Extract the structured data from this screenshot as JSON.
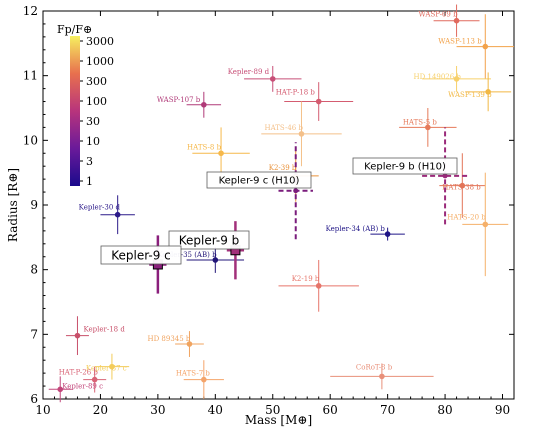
{
  "chart_data": {
    "type": "scatter",
    "title": "",
    "xlabel": "Mass [M⊕]",
    "ylabel": "Radius [R⊕]",
    "xlim": [
      10,
      92
    ],
    "ylim": [
      6,
      12
    ],
    "xticks": [
      "10",
      "20",
      "30",
      "40",
      "50",
      "60",
      "70",
      "80",
      "90"
    ],
    "yticks": [
      "6",
      "7",
      "8",
      "9",
      "10",
      "11",
      "12"
    ],
    "grid": false,
    "colorbar": {
      "label": "Fp/F⊕",
      "scale": "log",
      "ticks": [
        "3000",
        "1000",
        "300",
        "100",
        "30",
        "10",
        "3",
        "1"
      ],
      "placement": "top-left"
    },
    "points": [
      {
        "name": "WASP-69 b",
        "x": 82.0,
        "y": 11.85,
        "xerr": 4.0,
        "yerr": 0.25,
        "color": "#e06a5e"
      },
      {
        "name": "WASP-113 b",
        "x": 87.0,
        "y": 11.45,
        "xerr": 5.0,
        "yerr": 0.5,
        "color": "#f2a24a"
      },
      {
        "name": "Kepler-89 d",
        "x": 50.0,
        "y": 10.95,
        "xerr": 5.0,
        "yerr": 0.2,
        "color": "#c74f77"
      },
      {
        "name": "HD 149026 b",
        "x": 82.0,
        "y": 10.95,
        "xerr": 6.0,
        "yerr": 0.2,
        "color": "#f7d06b"
      },
      {
        "name": "WASP-139 b",
        "x": 87.5,
        "y": 10.75,
        "xerr": 4.0,
        "yerr": 0.3,
        "color": "#f2b844"
      },
      {
        "name": "WASP-107 b",
        "x": 38.0,
        "y": 10.55,
        "xerr": 3.0,
        "yerr": 0.2,
        "color": "#b03a78"
      },
      {
        "name": "HAT-P-18 b",
        "x": 58.0,
        "y": 10.6,
        "xerr": 6.0,
        "yerr": 0.3,
        "color": "#d45c70"
      },
      {
        "name": "HATS-5 b",
        "x": 77.0,
        "y": 10.2,
        "xerr": 5.0,
        "yerr": 0.3,
        "color": "#e67a5a"
      },
      {
        "name": "HATS-46 b",
        "x": 55.0,
        "y": 10.1,
        "xerr": 7.0,
        "yerr": 0.5,
        "color": "#f4c08a"
      },
      {
        "name": "HATS-8 b",
        "x": 41.0,
        "y": 9.8,
        "xerr": 5.0,
        "yerr": 0.4,
        "color": "#f6b84a"
      },
      {
        "name": "K2-39 b",
        "x": 54.0,
        "y": 9.45,
        "xerr": 4.0,
        "yerr": 0.4,
        "color": "#e9923a"
      },
      {
        "name": "HATS-38 b",
        "x": 83.0,
        "y": 9.3,
        "xerr": 4.0,
        "yerr": 0.5,
        "color": "#e27458"
      },
      {
        "name": "HATS-20 b",
        "x": 87.0,
        "y": 8.7,
        "xerr": 4.0,
        "yerr": 0.8,
        "color": "#f5b06a"
      },
      {
        "name": "Kepler-30 d",
        "x": 23.0,
        "y": 8.85,
        "xerr": 3.0,
        "yerr": 0.3,
        "color": "#2c1a8a"
      },
      {
        "name": "Kepler-34 (AB) b",
        "x": 70.0,
        "y": 8.55,
        "xerr": 3.0,
        "yerr": 0.1,
        "color": "#1f1486"
      },
      {
        "name": "Kepler-35 (AB) b",
        "x": 40.0,
        "y": 8.15,
        "xerr": 5.0,
        "yerr": 0.2,
        "color": "#221678"
      },
      {
        "name": "K2-19 b",
        "x": 58.0,
        "y": 7.75,
        "xerr": 7.0,
        "yerr": 0.4,
        "color": "#e6756a"
      },
      {
        "name": "Kepler-18 d",
        "x": 16.0,
        "y": 6.98,
        "xerr": 2.0,
        "yerr": 0.3,
        "color": "#c8506a"
      },
      {
        "name": "HD 89345 b",
        "x": 35.5,
        "y": 6.85,
        "xerr": 2.5,
        "yerr": 0.2,
        "color": "#f0a460"
      },
      {
        "name": "Kepler-87 c",
        "x": 22.0,
        "y": 6.5,
        "xerr": 3.0,
        "yerr": 0.2,
        "color": "#f3cc5a"
      },
      {
        "name": "HATS-7 b",
        "x": 38.0,
        "y": 6.3,
        "xerr": 3.5,
        "yerr": 0.3,
        "color": "#f4a46a"
      },
      {
        "name": "HAT-P-26 b",
        "x": 19.0,
        "y": 6.3,
        "xerr": 2.0,
        "yerr": 0.2,
        "color": "#d86476"
      },
      {
        "name": "Kepler-89 c",
        "x": 13.0,
        "y": 6.15,
        "xerr": 2.0,
        "yerr": 0.2,
        "color": "#c2467a"
      },
      {
        "name": "CoRoT-8 b",
        "x": 69.0,
        "y": 6.35,
        "xerr": 9.0,
        "yerr": 0.2,
        "color": "#e8907a"
      }
    ],
    "highlighted": [
      {
        "name": "Kepler-9 b",
        "x": 43.5,
        "y": 8.3,
        "xerr": 1.5,
        "yerr": 0.45,
        "color": "#a2307a"
      },
      {
        "name": "Kepler-9 c",
        "x": 30.0,
        "y": 8.08,
        "xerr": 1.5,
        "yerr": 0.45,
        "color": "#8a1f7c"
      }
    ],
    "previous": [
      {
        "name": "Kepler-9 b (H10)",
        "x": 80.0,
        "y": 9.45,
        "xerr": 4.0,
        "yerr": 0.75,
        "color": "#9a2a7a"
      },
      {
        "name": "Kepler-9 c (H10)",
        "x": 54.0,
        "y": 9.22,
        "xerr": 3.0,
        "yerr": 0.75,
        "color": "#7a1c7c"
      }
    ]
  }
}
